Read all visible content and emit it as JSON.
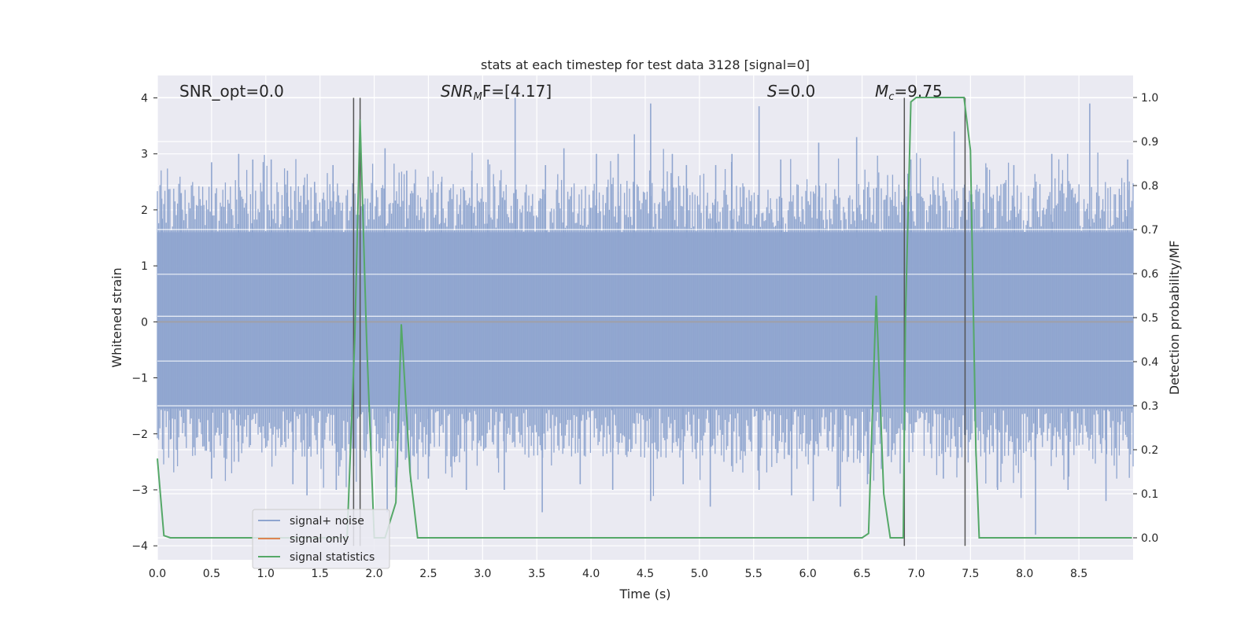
{
  "chart_data": {
    "type": "line",
    "title": "stats at each timestep for test data 3128 [signal=0]",
    "xlabel": "Time (s)",
    "ylabel_left": "Whitened strain",
    "ylabel_right": "Detection probability/MF",
    "xlim": [
      0.0,
      9.0
    ],
    "ylim_left": [
      -4.25,
      4.4
    ],
    "ylim_right": [
      -0.05,
      1.05
    ],
    "xticks": [
      "0.0",
      "0.5",
      "1.0",
      "1.5",
      "2.0",
      "2.5",
      "3.0",
      "3.5",
      "4.0",
      "4.5",
      "5.0",
      "5.5",
      "6.0",
      "6.5",
      "7.0",
      "7.5",
      "8.0",
      "8.5"
    ],
    "yticks_left": [
      "4",
      "3",
      "2",
      "1",
      "0",
      "−1",
      "−2",
      "−3",
      "−4"
    ],
    "yticks_right": [
      "1.0",
      "0.9",
      "0.8",
      "0.7",
      "0.6",
      "0.5",
      "0.4",
      "0.3",
      "0.2",
      "0.1",
      "0.0"
    ],
    "grid": true,
    "legend_placement": "lower-left",
    "annotations": {
      "snr_opt": "SNR_opt=0.0",
      "snr_mf_base": "SNR",
      "snr_mf_sub": "M",
      "snr_mf_rest": "F=[4.17]",
      "s_italic": "S",
      "s_rest": "=0.0",
      "mc_base": "M",
      "mc_sub": "c",
      "mc_rest": "=9.75"
    },
    "series": [
      {
        "name": "signal+ noise",
        "color": "#8fa5cf",
        "note": "whitened strain noise band approx ±1.6 around 0 with spikes to about ±4"
      },
      {
        "name": "signal only",
        "color": "#dd8452",
        "values_constant": 0.0
      },
      {
        "name": "signal statistics",
        "color": "#55a868",
        "axis": "right",
        "x": [
          0.0,
          0.06,
          0.12,
          1.75,
          1.82,
          1.87,
          1.93,
          2.0,
          2.1,
          2.2,
          2.25,
          2.33,
          2.4,
          2.45,
          6.5,
          6.56,
          6.63,
          6.7,
          6.76,
          6.88,
          6.9,
          6.95,
          7.0,
          7.44,
          7.5,
          7.55,
          7.58,
          8.99
        ],
        "y": [
          0.18,
          0.005,
          0.0,
          0.0,
          0.45,
          0.95,
          0.45,
          0.0,
          0.0,
          0.08,
          0.485,
          0.15,
          0.0,
          0.0,
          0.0,
          0.01,
          0.55,
          0.1,
          0.0,
          0.0,
          0.5,
          0.99,
          1.0,
          1.0,
          0.88,
          0.2,
          0.0,
          0.0
        ]
      }
    ],
    "vertical_lines": [
      {
        "x": 1.81,
        "ymin_left": -4.0,
        "ymax_left": 4.0,
        "color": "#555555"
      },
      {
        "x": 1.87,
        "ymin_left": -4.0,
        "ymax_left": 4.0,
        "color": "#555555"
      },
      {
        "x": 6.89,
        "ymin_left": -4.0,
        "ymax_left": 4.0,
        "color": "#555555"
      },
      {
        "x": 7.45,
        "ymin_left": -4.0,
        "ymax_left": 4.0,
        "color": "#555555"
      }
    ],
    "spikes_up": [
      [
        0.04,
        2.2
      ],
      [
        0.22,
        2.3
      ],
      [
        0.5,
        2.85
      ],
      [
        0.75,
        3.0
      ],
      [
        0.88,
        2.9
      ],
      [
        1.05,
        2.9
      ],
      [
        1.2,
        2.7
      ],
      [
        1.45,
        2.5
      ],
      [
        1.62,
        2.8
      ],
      [
        2.1,
        3.1
      ],
      [
        2.3,
        2.7
      ],
      [
        2.62,
        2.5
      ],
      [
        2.9,
        2.7
      ],
      [
        3.05,
        2.9
      ],
      [
        3.3,
        4.0
      ],
      [
        3.58,
        2.8
      ],
      [
        3.75,
        3.1
      ],
      [
        4.05,
        3.0
      ],
      [
        4.25,
        3.0
      ],
      [
        4.4,
        3.35
      ],
      [
        4.55,
        3.9
      ],
      [
        4.75,
        3.0
      ],
      [
        4.88,
        2.8
      ],
      [
        5.15,
        2.8
      ],
      [
        5.3,
        3.0
      ],
      [
        5.55,
        3.85
      ],
      [
        5.75,
        2.9
      ],
      [
        6.1,
        3.2
      ],
      [
        6.45,
        3.3
      ],
      [
        6.95,
        2.9
      ],
      [
        7.35,
        3.4
      ],
      [
        7.62,
        2.3
      ],
      [
        7.9,
        2.8
      ],
      [
        8.25,
        3.0
      ],
      [
        8.6,
        3.9
      ],
      [
        8.95,
        2.9
      ]
    ],
    "spikes_down": [
      [
        0.12,
        -2.1
      ],
      [
        0.5,
        -2.8
      ],
      [
        0.75,
        -2.5
      ],
      [
        1.25,
        -2.9
      ],
      [
        1.38,
        -3.1
      ],
      [
        1.65,
        -3.0
      ],
      [
        2.12,
        -3.4
      ],
      [
        2.5,
        -2.8
      ],
      [
        2.85,
        -3.0
      ],
      [
        3.2,
        -3.0
      ],
      [
        3.55,
        -3.4
      ],
      [
        3.9,
        -2.9
      ],
      [
        4.2,
        -3.0
      ],
      [
        4.55,
        -3.2
      ],
      [
        4.85,
        -2.9
      ],
      [
        5.1,
        -3.3
      ],
      [
        5.55,
        -3.0
      ],
      [
        5.85,
        -3.1
      ],
      [
        6.05,
        -3.2
      ],
      [
        6.3,
        -3.3
      ],
      [
        6.55,
        -2.9
      ],
      [
        7.25,
        -2.8
      ],
      [
        7.75,
        -3.0
      ],
      [
        8.1,
        -3.8
      ],
      [
        8.4,
        -3.0
      ],
      [
        8.75,
        -3.2
      ]
    ]
  },
  "legend": {
    "items": [
      {
        "label": "signal+ noise",
        "color": "#8fa5cf"
      },
      {
        "label": "signal only",
        "color": "#dd8452"
      },
      {
        "label": "signal statistics",
        "color": "#55a868"
      }
    ]
  }
}
